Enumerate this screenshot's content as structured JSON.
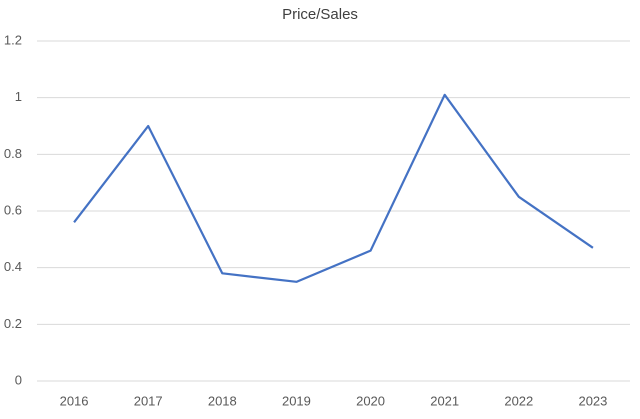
{
  "chart_data": {
    "type": "line",
    "title": "Price/Sales",
    "categories": [
      "2016",
      "2017",
      "2018",
      "2019",
      "2020",
      "2021",
      "2022",
      "2023"
    ],
    "series": [
      {
        "color": "#4472c4",
        "values": [
          0.56,
          0.9,
          0.38,
          0.35,
          0.46,
          1.01,
          0.65,
          0.47
        ]
      }
    ],
    "ylim": [
      0,
      1.2
    ],
    "yticks": [
      0,
      0.2,
      0.4,
      0.6,
      0.8,
      1,
      1.2
    ],
    "grid": true
  }
}
